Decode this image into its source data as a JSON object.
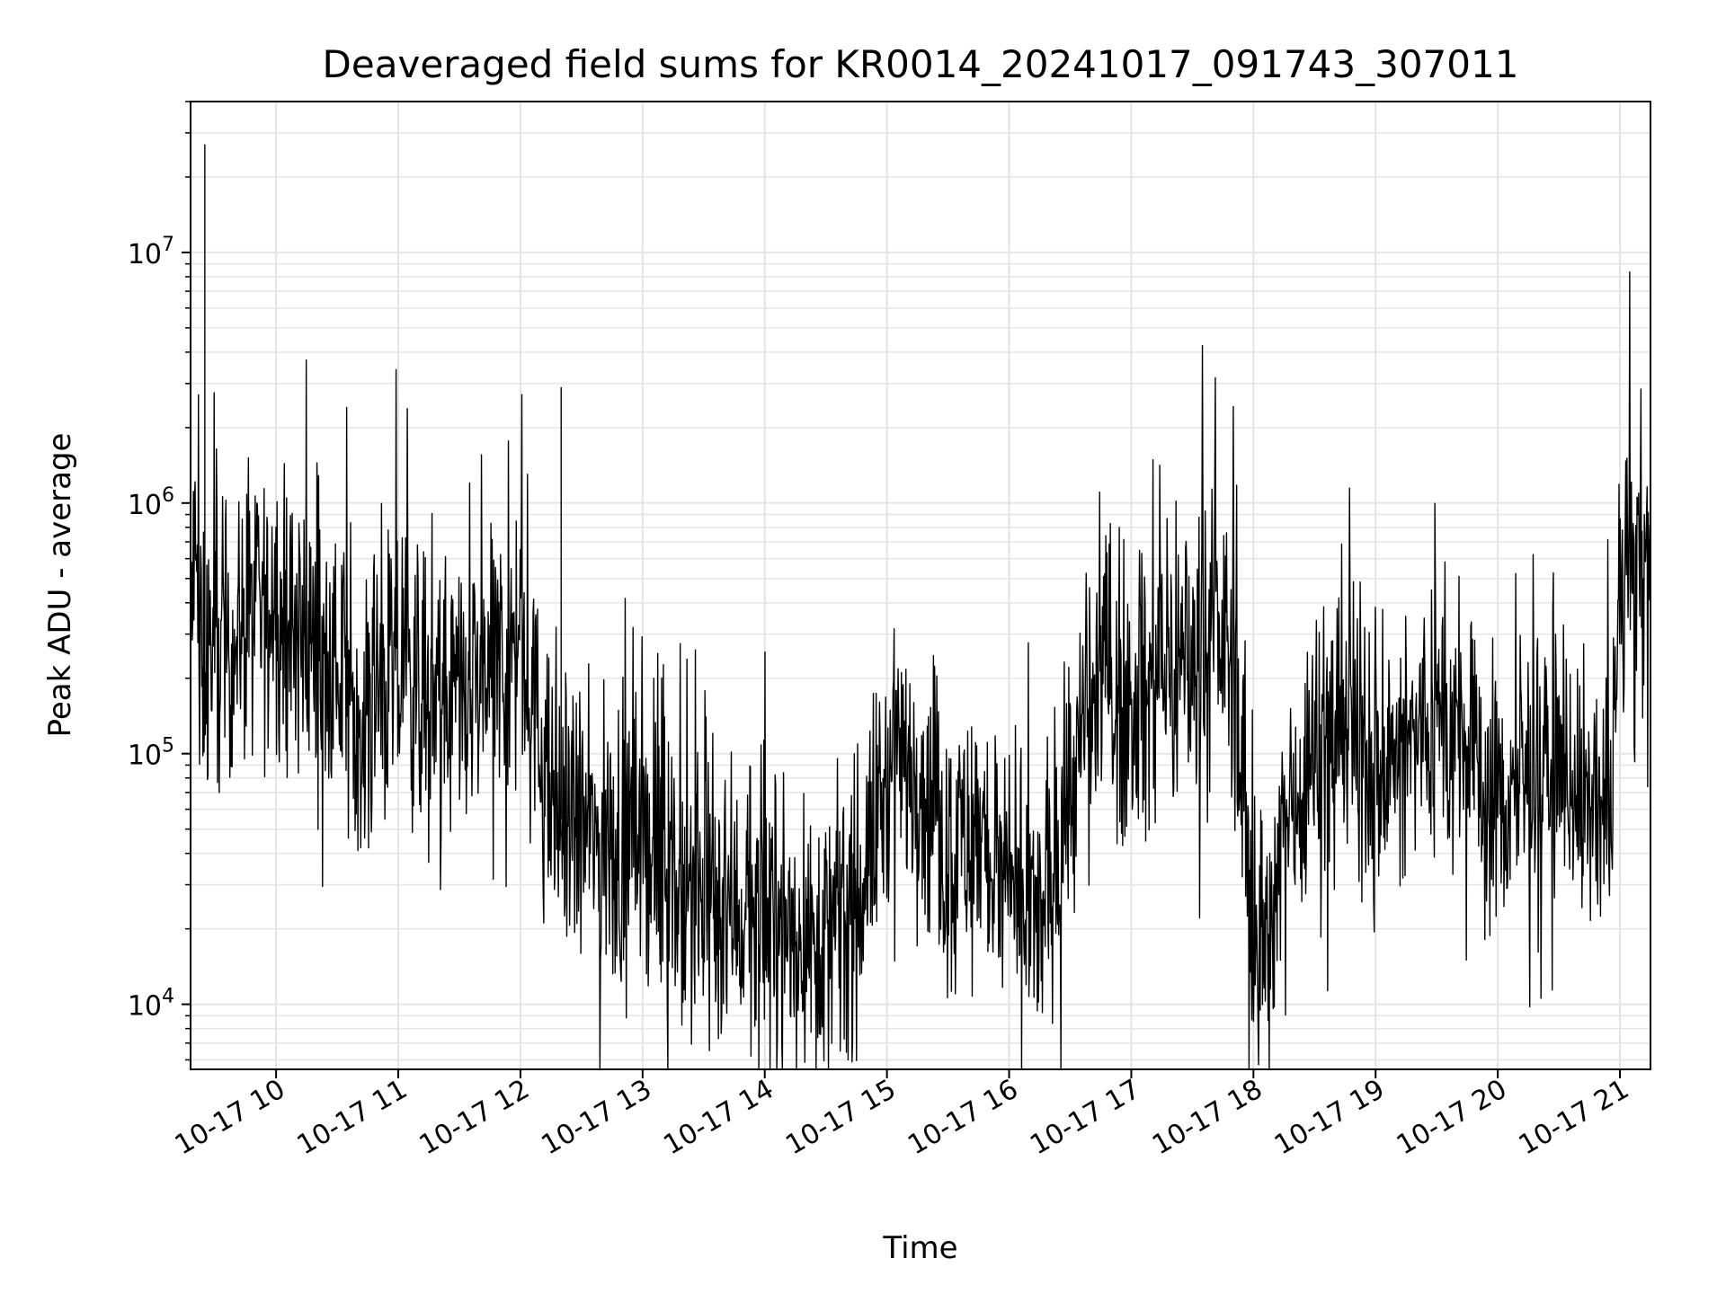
{
  "chart_data": {
    "type": "line",
    "title": "Deaveraged field sums for KR0014_20241017_091743_307011",
    "xlabel": "Time",
    "ylabel": "Peak ADU - average",
    "y_scale": "log",
    "ylim": [
      5500,
      40000000
    ],
    "xlim": [
      "2024-10-17 09:18",
      "2024-10-17 21:15"
    ],
    "grid": true,
    "grid_minor": true,
    "line_color": "#000000",
    "x_ticks": [
      {
        "value": "2024-10-17 10:00",
        "label": "10-17 10"
      },
      {
        "value": "2024-10-17 11:00",
        "label": "10-17 11"
      },
      {
        "value": "2024-10-17 12:00",
        "label": "10-17 12"
      },
      {
        "value": "2024-10-17 13:00",
        "label": "10-17 13"
      },
      {
        "value": "2024-10-17 14:00",
        "label": "10-17 14"
      },
      {
        "value": "2024-10-17 15:00",
        "label": "10-17 15"
      },
      {
        "value": "2024-10-17 16:00",
        "label": "10-17 16"
      },
      {
        "value": "2024-10-17 17:00",
        "label": "10-17 17"
      },
      {
        "value": "2024-10-17 18:00",
        "label": "10-17 18"
      },
      {
        "value": "2024-10-17 19:00",
        "label": "10-17 19"
      },
      {
        "value": "2024-10-17 20:00",
        "label": "10-17 20"
      },
      {
        "value": "2024-10-17 21:00",
        "label": "10-17 21"
      }
    ],
    "y_ticks": [
      {
        "value": 10000,
        "base": "10",
        "exp": "4"
      },
      {
        "value": 100000,
        "base": "10",
        "exp": "5"
      },
      {
        "value": 1000000,
        "base": "10",
        "exp": "6"
      },
      {
        "value": 10000000,
        "base": "10",
        "exp": "7"
      }
    ],
    "x": [
      "2024-10-17 09:18",
      "2024-10-17 09:20",
      "2024-10-17 09:22",
      "2024-10-17 09:25",
      "2024-10-17 09:30",
      "2024-10-17 09:40",
      "2024-10-17 09:50",
      "2024-10-17 10:00",
      "2024-10-17 10:15",
      "2024-10-17 10:30",
      "2024-10-17 10:45",
      "2024-10-17 11:00",
      "2024-10-17 11:15",
      "2024-10-17 11:30",
      "2024-10-17 11:45",
      "2024-10-17 12:00",
      "2024-10-17 12:10",
      "2024-10-17 12:15",
      "2024-10-17 12:20",
      "2024-10-17 12:30",
      "2024-10-17 12:45",
      "2024-10-17 13:00",
      "2024-10-17 13:15",
      "2024-10-17 13:30",
      "2024-10-17 13:45",
      "2024-10-17 14:00",
      "2024-10-17 14:15",
      "2024-10-17 14:30",
      "2024-10-17 14:45",
      "2024-10-17 15:00",
      "2024-10-17 15:15",
      "2024-10-17 15:30",
      "2024-10-17 15:45",
      "2024-10-17 16:00",
      "2024-10-17 16:15",
      "2024-10-17 16:30",
      "2024-10-17 16:45",
      "2024-10-17 17:00",
      "2024-10-17 17:15",
      "2024-10-17 17:30",
      "2024-10-17 17:45",
      "2024-10-17 17:50",
      "2024-10-17 17:55",
      "2024-10-17 18:00",
      "2024-10-17 18:10",
      "2024-10-17 18:15",
      "2024-10-17 18:30",
      "2024-10-17 18:45",
      "2024-10-17 19:00",
      "2024-10-17 19:15",
      "2024-10-17 19:30",
      "2024-10-17 19:45",
      "2024-10-17 20:00",
      "2024-10-17 20:15",
      "2024-10-17 20:30",
      "2024-10-17 20:45",
      "2024-10-17 20:55",
      "2024-10-17 21:00",
      "2024-10-17 21:10",
      "2024-10-17 21:15"
    ],
    "y": [
      300000,
      600000,
      250000,
      27000000,
      250000,
      300000,
      350000,
      400000,
      300000,
      200000,
      150000,
      200000,
      180000,
      150000,
      200000,
      300000,
      100000,
      60000,
      2900000,
      50000,
      40000,
      50000,
      30000,
      25000,
      25000,
      20000,
      20000,
      18000,
      25000,
      80000,
      90000,
      40000,
      50000,
      25000,
      20000,
      70000,
      200000,
      150000,
      200000,
      250000,
      300000,
      200000,
      80000,
      20000,
      15000,
      60000,
      100000,
      150000,
      80000,
      100000,
      150000,
      100000,
      60000,
      80000,
      100000,
      60000,
      50000,
      400000,
      600000,
      500000
    ],
    "noise_amplitude_decades": 0.55
  }
}
